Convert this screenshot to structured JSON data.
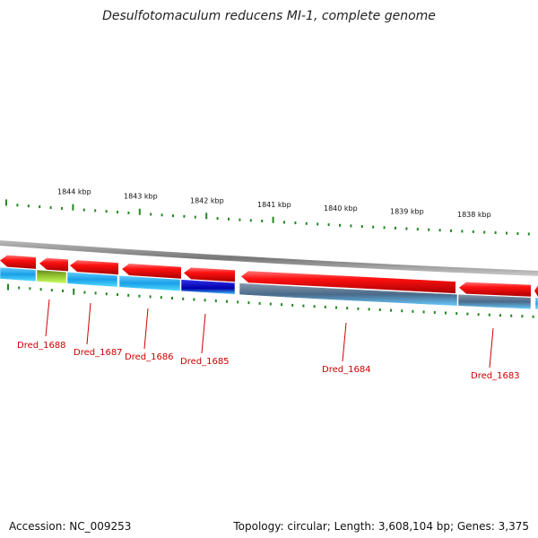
{
  "title": "Desulfotomaculum reducens MI-1, complete genome",
  "footer": {
    "accession": "Accession: NC_009253",
    "summary": "Topology: circular; Length: 3,608,104 bp; Genes: 3,375"
  },
  "colors": {
    "cds": "#ee1111",
    "track_cyan": "#22aaee",
    "track_blue": "#1111cc",
    "track_green": "#88cc22",
    "track_steel": "#6688aa",
    "backbone": "#888888",
    "tick": "#228822",
    "label": "#cc0000"
  },
  "ruler": [
    "1844 kbp",
    "1843 kbp",
    "1842 kbp",
    "1841 kbp",
    "1840 kbp",
    "1839 kbp",
    "1838 kbp"
  ],
  "genes": [
    {
      "name": "Dred_1688"
    },
    {
      "name": "Dred_1687"
    },
    {
      "name": "Dred_1686"
    },
    {
      "name": "Dred_1685"
    },
    {
      "name": "Dred_1684"
    },
    {
      "name": "Dred_1683"
    }
  ]
}
